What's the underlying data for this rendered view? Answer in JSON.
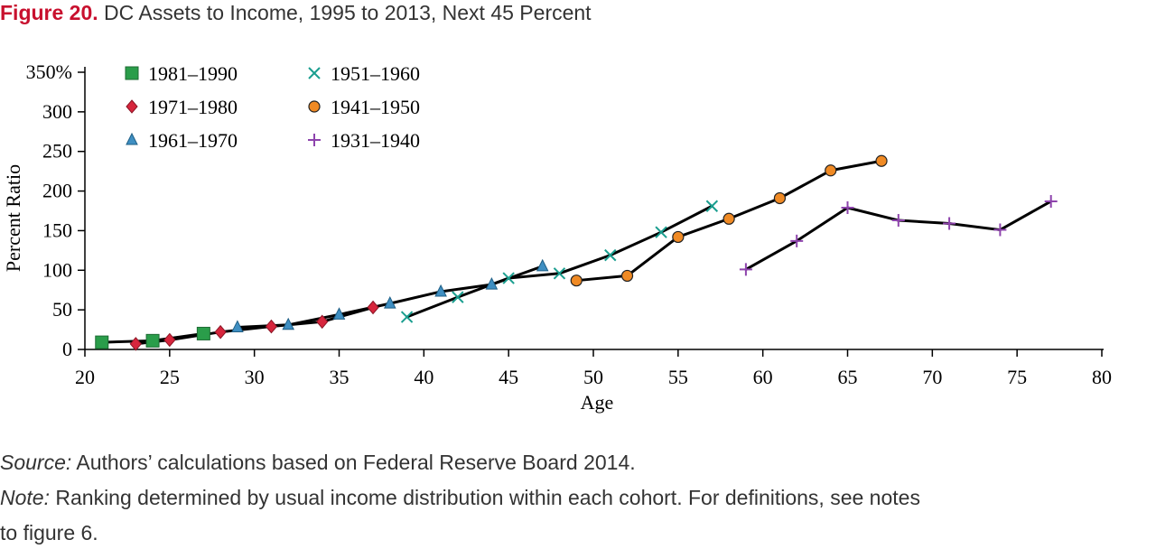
{
  "figure": {
    "label": "Figure 20.",
    "title": "DC Assets to Income, 1995 to 2013, Next 45 Percent"
  },
  "caption": {
    "source_label": "Source:",
    "source_text": " Authors’ calculations based on Federal Reserve Board 2014.",
    "note_label": "Note:",
    "note_text_1": " Ranking determined by usual income distribution within each cohort. For definitions, see notes",
    "note_text_2": "to figure 6."
  },
  "chart_data": {
    "type": "line",
    "xlabel": "Age",
    "ylabel": "Percent Ratio",
    "xlim": [
      20,
      80
    ],
    "ylim": [
      0,
      350
    ],
    "x_ticks": [
      20,
      25,
      30,
      35,
      40,
      45,
      50,
      55,
      60,
      65,
      70,
      75,
      80
    ],
    "y_ticks": [
      0,
      50,
      100,
      150,
      200,
      250,
      300,
      350
    ],
    "y_tick_labels": [
      "0",
      "50",
      "100",
      "150",
      "200",
      "250",
      "300",
      "350%"
    ],
    "grid": false,
    "legend_position": "top-left",
    "line_color": "#000000",
    "series": [
      {
        "name": "1981–1990",
        "marker": "square",
        "color": "#2a9d4a",
        "x": [
          21,
          24,
          27
        ],
        "y": [
          9,
          11,
          20
        ]
      },
      {
        "name": "1971–1980",
        "marker": "diamond",
        "color": "#d7263d",
        "x": [
          23,
          25,
          28,
          31,
          34,
          37
        ],
        "y": [
          7,
          12,
          22,
          29,
          35,
          53
        ]
      },
      {
        "name": "1961–1970",
        "marker": "triangle",
        "color": "#3f8fc2",
        "x": [
          29,
          32,
          35,
          38,
          41,
          44,
          47
        ],
        "y": [
          28,
          31,
          44,
          58,
          73,
          82,
          105
        ]
      },
      {
        "name": "1951–1960",
        "marker": "x",
        "color": "#1a9e8f",
        "x": [
          39,
          42,
          45,
          48,
          51,
          54,
          57
        ],
        "y": [
          41,
          66,
          90,
          96,
          119,
          148,
          181
        ]
      },
      {
        "name": "1941–1950",
        "marker": "circle",
        "color": "#f08a24",
        "x": [
          49,
          52,
          55,
          58,
          61,
          64,
          67
        ],
        "y": [
          87,
          93,
          142,
          165,
          191,
          226,
          238
        ]
      },
      {
        "name": "1931–1940",
        "marker": "plus",
        "color": "#8e44ad",
        "x": [
          59,
          62,
          65,
          68,
          71,
          74,
          77
        ],
        "y": [
          101,
          137,
          179,
          163,
          159,
          151,
          187
        ]
      }
    ]
  }
}
